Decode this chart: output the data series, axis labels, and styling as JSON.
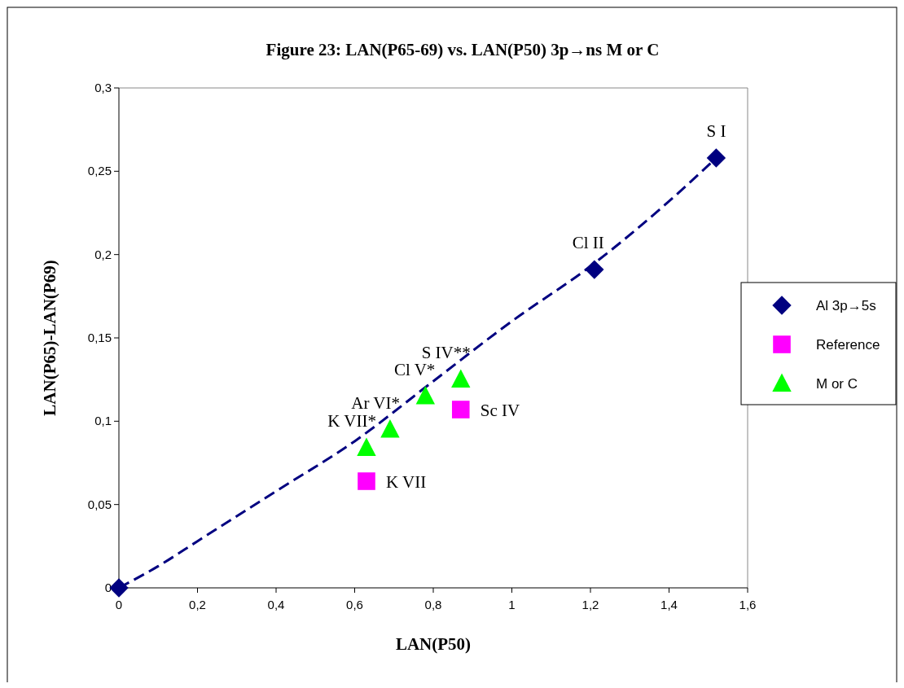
{
  "chart_data": {
    "type": "scatter",
    "title": "Figure 23: LAN(P65-69) vs. LAN(P50)  3p→ns M or C",
    "xlabel": "LAN(P50)",
    "ylabel": "LAN(P65)-LAN(P69)",
    "xlim": [
      0,
      1.6
    ],
    "ylim": [
      0,
      0.3
    ],
    "xticks": [
      {
        "value": 0,
        "label": "0"
      },
      {
        "value": 0.2,
        "label": "0,2"
      },
      {
        "value": 0.4,
        "label": "0,4"
      },
      {
        "value": 0.6,
        "label": "0,6"
      },
      {
        "value": 0.8,
        "label": "0,8"
      },
      {
        "value": 1,
        "label": "1"
      },
      {
        "value": 1.2,
        "label": "1,2"
      },
      {
        "value": 1.4,
        "label": "1,4"
      },
      {
        "value": 1.6,
        "label": "1,6"
      }
    ],
    "yticks": [
      {
        "value": 0,
        "label": "0"
      },
      {
        "value": 0.05,
        "label": "0,05"
      },
      {
        "value": 0.1,
        "label": "0,1"
      },
      {
        "value": 0.15,
        "label": "0,15"
      },
      {
        "value": 0.2,
        "label": "0,2"
      },
      {
        "value": 0.25,
        "label": "0,25"
      },
      {
        "value": 0.3,
        "label": "0,3"
      }
    ],
    "grid": false,
    "legend": "right",
    "series": [
      {
        "name": "Al 3p→5s",
        "color": "#000080",
        "marker": "diamond",
        "x": [
          0,
          1.21,
          1.52
        ],
        "values": [
          0,
          0.191,
          0.258
        ]
      },
      {
        "name": "Reference",
        "color": "#ff00ff",
        "marker": "square",
        "x": [
          0.63,
          0.87
        ],
        "values": [
          0.064,
          0.107
        ]
      },
      {
        "name": "M or C",
        "color": "#00ff00",
        "marker": "triangle",
        "x": [
          0.63,
          0.69,
          0.78,
          0.87
        ],
        "values": [
          0.084,
          0.095,
          0.115,
          0.125
        ]
      },
      {
        "type": "line",
        "color": "#000080",
        "marker": "none",
        "line_style": "dashed",
        "x": [
          0,
          0.1,
          0.2,
          0.4,
          0.6,
          0.8,
          1.0,
          1.2,
          1.4,
          1.52
        ],
        "values": [
          0,
          0.013,
          0.028,
          0.058,
          0.088,
          0.124,
          0.16,
          0.193,
          0.232,
          0.258
        ]
      }
    ],
    "annotations": [
      {
        "text": "S I",
        "x": 1.52,
        "y": 0.258
      },
      {
        "text": "Cl II",
        "x": 1.21,
        "y": 0.191
      },
      {
        "text": "S IV**",
        "x": 0.87,
        "y": 0.125
      },
      {
        "text": "Cl V*",
        "x": 0.78,
        "y": 0.115
      },
      {
        "text": "Ar VI*",
        "x": 0.69,
        "y": 0.095
      },
      {
        "text": "K VII*",
        "x": 0.63,
        "y": 0.084
      },
      {
        "text": "K VII",
        "x": 0.63,
        "y": 0.064
      },
      {
        "text": "Sc IV",
        "x": 0.87,
        "y": 0.107
      }
    ]
  }
}
